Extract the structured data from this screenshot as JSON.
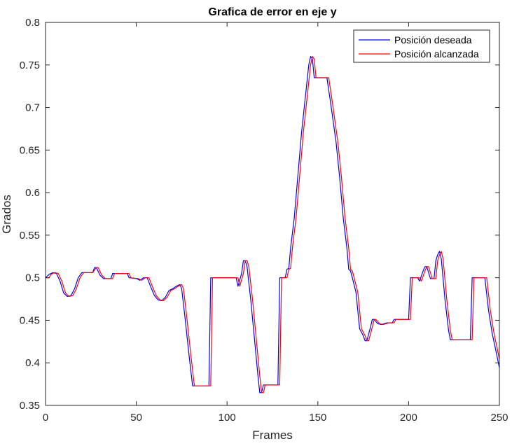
{
  "chart_data": {
    "type": "line",
    "title": "Grafica de error en eje y",
    "xlabel": "Frames",
    "ylabel": "Grados",
    "xlim": [
      0,
      250
    ],
    "ylim": [
      0.35,
      0.8
    ],
    "xticks": [
      0,
      50,
      100,
      150,
      200,
      250
    ],
    "yticks": [
      0.35,
      0.4,
      0.45,
      0.5,
      0.55,
      0.6,
      0.65,
      0.7,
      0.75,
      0.8
    ],
    "xtick_labels": [
      "0",
      "50",
      "100",
      "150",
      "200",
      "250"
    ],
    "ytick_labels": [
      "0.35",
      "0.4",
      "0.45",
      "0.5",
      "0.55",
      "0.6",
      "0.65",
      "0.7",
      "0.75",
      "0.8"
    ],
    "grid": false,
    "legend_position": "top-right",
    "series": [
      {
        "name": "Posición deseada",
        "color": "#0000ff",
        "points": [
          [
            0,
            0.5
          ],
          [
            2,
            0.504
          ],
          [
            4,
            0.506
          ],
          [
            6,
            0.505
          ],
          [
            8,
            0.496
          ],
          [
            10,
            0.482
          ],
          [
            12,
            0.478
          ],
          [
            14,
            0.479
          ],
          [
            16,
            0.487
          ],
          [
            18,
            0.5
          ],
          [
            20,
            0.506
          ],
          [
            24,
            0.506
          ],
          [
            26,
            0.506
          ],
          [
            27,
            0.512
          ],
          [
            28,
            0.512
          ],
          [
            30,
            0.503
          ],
          [
            32,
            0.499
          ],
          [
            36,
            0.499
          ],
          [
            37,
            0.505
          ],
          [
            45,
            0.505
          ],
          [
            46,
            0.5
          ],
          [
            50,
            0.499
          ],
          [
            52,
            0.497
          ],
          [
            54,
            0.5
          ],
          [
            56,
            0.5
          ],
          [
            58,
            0.489
          ],
          [
            60,
            0.479
          ],
          [
            62,
            0.474
          ],
          [
            64,
            0.473
          ],
          [
            66,
            0.477
          ],
          [
            68,
            0.485
          ],
          [
            70,
            0.487
          ],
          [
            72,
            0.49
          ],
          [
            74,
            0.492
          ],
          [
            75,
            0.487
          ],
          [
            77,
            0.45
          ],
          [
            79,
            0.41
          ],
          [
            81,
            0.373
          ],
          [
            90,
            0.373
          ],
          [
            91,
            0.5
          ],
          [
            105,
            0.5
          ],
          [
            106,
            0.49
          ],
          [
            108,
            0.505
          ],
          [
            109,
            0.52
          ],
          [
            110,
            0.52
          ],
          [
            111,
            0.513
          ],
          [
            113,
            0.475
          ],
          [
            115,
            0.43
          ],
          [
            117,
            0.385
          ],
          [
            118,
            0.365
          ],
          [
            119,
            0.365
          ],
          [
            120,
            0.374
          ],
          [
            128,
            0.374
          ],
          [
            129,
            0.5
          ],
          [
            132,
            0.5
          ],
          [
            133,
            0.51
          ],
          [
            134,
            0.511
          ],
          [
            135,
            0.535
          ],
          [
            137,
            0.57
          ],
          [
            139,
            0.62
          ],
          [
            141,
            0.67
          ],
          [
            143,
            0.71
          ],
          [
            145,
            0.75
          ],
          [
            146,
            0.76
          ],
          [
            147,
            0.757
          ],
          [
            148,
            0.735
          ],
          [
            155,
            0.735
          ],
          [
            157,
            0.706
          ],
          [
            160,
            0.66
          ],
          [
            162,
            0.618
          ],
          [
            164,
            0.57
          ],
          [
            166,
            0.535
          ],
          [
            167,
            0.51
          ],
          [
            168,
            0.508
          ],
          [
            169,
            0.5
          ],
          [
            171,
            0.483
          ],
          [
            173,
            0.44
          ],
          [
            175,
            0.432
          ],
          [
            176,
            0.426
          ],
          [
            177,
            0.426
          ],
          [
            179,
            0.442
          ],
          [
            180,
            0.451
          ],
          [
            181,
            0.451
          ],
          [
            183,
            0.446
          ],
          [
            185,
            0.445
          ],
          [
            188,
            0.447
          ],
          [
            191,
            0.447
          ],
          [
            192,
            0.451
          ],
          [
            200,
            0.451
          ],
          [
            201,
            0.5
          ],
          [
            205,
            0.5
          ],
          [
            206,
            0.496
          ],
          [
            208,
            0.508
          ],
          [
            209,
            0.513
          ],
          [
            210,
            0.513
          ],
          [
            212,
            0.499
          ],
          [
            214,
            0.499
          ],
          [
            215,
            0.52
          ],
          [
            216,
            0.527
          ],
          [
            217,
            0.531
          ],
          [
            218,
            0.522
          ],
          [
            220,
            0.475
          ],
          [
            222,
            0.438
          ],
          [
            223,
            0.427
          ],
          [
            234,
            0.427
          ],
          [
            235,
            0.5
          ],
          [
            242,
            0.5
          ],
          [
            244,
            0.462
          ],
          [
            246,
            0.435
          ],
          [
            248,
            0.415
          ],
          [
            250,
            0.394
          ]
        ]
      },
      {
        "name": "Posición alcanzada",
        "color": "#ff0000",
        "points": [
          [
            0,
            0.5
          ],
          [
            2,
            0.5
          ],
          [
            3,
            0.504
          ],
          [
            5,
            0.506
          ],
          [
            7,
            0.505
          ],
          [
            9,
            0.496
          ],
          [
            11,
            0.482
          ],
          [
            13,
            0.478
          ],
          [
            15,
            0.479
          ],
          [
            17,
            0.487
          ],
          [
            19,
            0.5
          ],
          [
            21,
            0.506
          ],
          [
            26,
            0.506
          ],
          [
            28,
            0.512
          ],
          [
            29,
            0.512
          ],
          [
            31,
            0.503
          ],
          [
            33,
            0.499
          ],
          [
            37,
            0.499
          ],
          [
            38,
            0.505
          ],
          [
            46,
            0.505
          ],
          [
            47,
            0.5
          ],
          [
            51,
            0.499
          ],
          [
            53,
            0.497
          ],
          [
            55,
            0.5
          ],
          [
            57,
            0.5
          ],
          [
            59,
            0.489
          ],
          [
            61,
            0.479
          ],
          [
            63,
            0.474
          ],
          [
            65,
            0.473
          ],
          [
            67,
            0.477
          ],
          [
            69,
            0.485
          ],
          [
            71,
            0.487
          ],
          [
            73,
            0.49
          ],
          [
            75,
            0.492
          ],
          [
            76,
            0.487
          ],
          [
            78,
            0.45
          ],
          [
            80,
            0.41
          ],
          [
            82,
            0.373
          ],
          [
            90,
            0.373
          ],
          [
            91,
            0.373
          ],
          [
            92,
            0.5
          ],
          [
            106,
            0.5
          ],
          [
            107,
            0.49
          ],
          [
            109,
            0.505
          ],
          [
            110,
            0.52
          ],
          [
            111,
            0.52
          ],
          [
            112,
            0.513
          ],
          [
            114,
            0.475
          ],
          [
            116,
            0.43
          ],
          [
            118,
            0.385
          ],
          [
            119,
            0.365
          ],
          [
            120,
            0.365
          ],
          [
            121,
            0.374
          ],
          [
            129,
            0.374
          ],
          [
            130,
            0.5
          ],
          [
            133,
            0.5
          ],
          [
            134,
            0.51
          ],
          [
            135,
            0.511
          ],
          [
            136,
            0.535
          ],
          [
            138,
            0.57
          ],
          [
            140,
            0.62
          ],
          [
            142,
            0.67
          ],
          [
            144,
            0.71
          ],
          [
            146,
            0.75
          ],
          [
            147,
            0.76
          ],
          [
            148,
            0.757
          ],
          [
            149,
            0.735
          ],
          [
            156,
            0.735
          ],
          [
            158,
            0.706
          ],
          [
            161,
            0.66
          ],
          [
            163,
            0.618
          ],
          [
            165,
            0.57
          ],
          [
            167,
            0.535
          ],
          [
            168,
            0.51
          ],
          [
            169,
            0.508
          ],
          [
            170,
            0.5
          ],
          [
            172,
            0.483
          ],
          [
            174,
            0.44
          ],
          [
            176,
            0.432
          ],
          [
            177,
            0.426
          ],
          [
            178,
            0.426
          ],
          [
            180,
            0.442
          ],
          [
            181,
            0.451
          ],
          [
            182,
            0.451
          ],
          [
            184,
            0.446
          ],
          [
            186,
            0.445
          ],
          [
            189,
            0.447
          ],
          [
            192,
            0.447
          ],
          [
            193,
            0.451
          ],
          [
            201,
            0.451
          ],
          [
            202,
            0.5
          ],
          [
            206,
            0.5
          ],
          [
            207,
            0.496
          ],
          [
            209,
            0.508
          ],
          [
            210,
            0.513
          ],
          [
            211,
            0.513
          ],
          [
            213,
            0.499
          ],
          [
            215,
            0.499
          ],
          [
            216,
            0.52
          ],
          [
            217,
            0.527
          ],
          [
            218,
            0.531
          ],
          [
            219,
            0.522
          ],
          [
            221,
            0.475
          ],
          [
            223,
            0.438
          ],
          [
            224,
            0.427
          ],
          [
            235,
            0.427
          ],
          [
            236,
            0.5
          ],
          [
            243,
            0.5
          ],
          [
            245,
            0.462
          ],
          [
            247,
            0.435
          ],
          [
            249,
            0.415
          ],
          [
            250,
            0.404
          ]
        ]
      }
    ]
  }
}
